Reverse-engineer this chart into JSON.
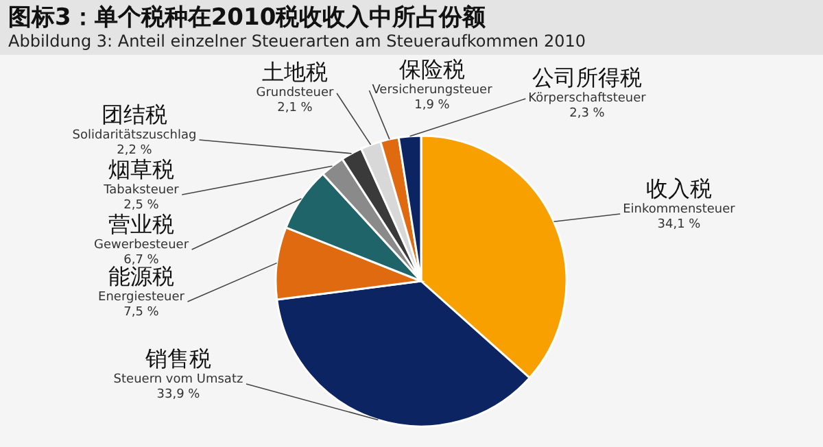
{
  "chart_data": {
    "type": "pie",
    "title": "图标3：单个税种在2010税收收入中所占份额",
    "subtitle": "Abbildung 3:   Anteil einzelner Steuerarten am Steueraufkommen 2010",
    "categories": [
      "收入税\nEinkommensteuer",
      "销售税\nSteuern vom Umsatz",
      "能源税\nEnergiesteuer",
      "营业税\nGewerbesteuer",
      "烟草税\nTabaksteuer",
      "团结税\nSolidaritätszuschlag",
      "土地税\nGrundsteuer",
      "保险税\nVersicherungsteuer",
      "公司所得税\nKörperschaftsteuer"
    ],
    "values": [
      34.1,
      33.9,
      7.5,
      6.7,
      2.5,
      2.2,
      2.1,
      1.9,
      2.3
    ],
    "colors": [
      "#f7a000",
      "#0c2461",
      "#e06a10",
      "#1e6468",
      "#8a8a8a",
      "#3a3a3a",
      "#d8d8d8",
      "#e06a10",
      "#0c2461"
    ],
    "value_labels": [
      "34,1 %",
      "33,9 %",
      "7,5 %",
      "6,7 %",
      "2,5 %",
      "2,2 %",
      "2,1 %",
      "1,9 %",
      "2,3 %"
    ]
  }
}
